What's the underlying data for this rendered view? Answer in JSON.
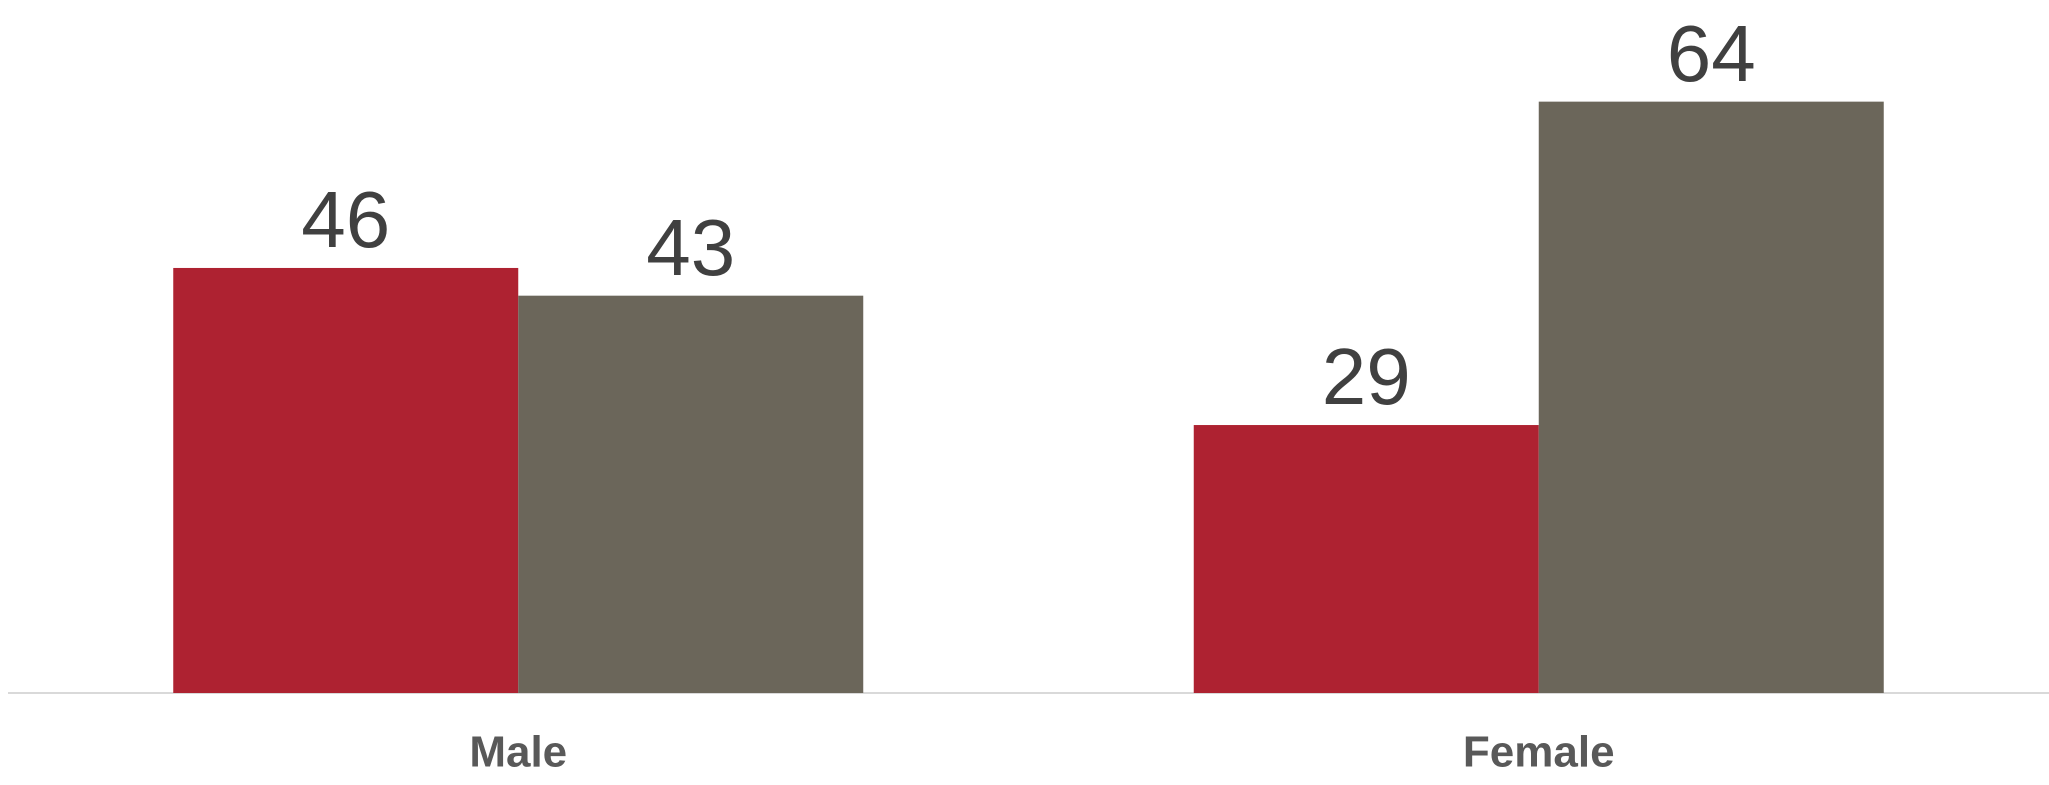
{
  "chart_data": {
    "type": "bar",
    "categories": [
      "Male",
      "Female"
    ],
    "series": [
      {
        "color": "#ae2231",
        "values": [
          46,
          29
        ]
      },
      {
        "color": "#6b665a",
        "values": [
          43,
          64
        ]
      }
    ],
    "ylim": [
      0,
      75
    ]
  }
}
